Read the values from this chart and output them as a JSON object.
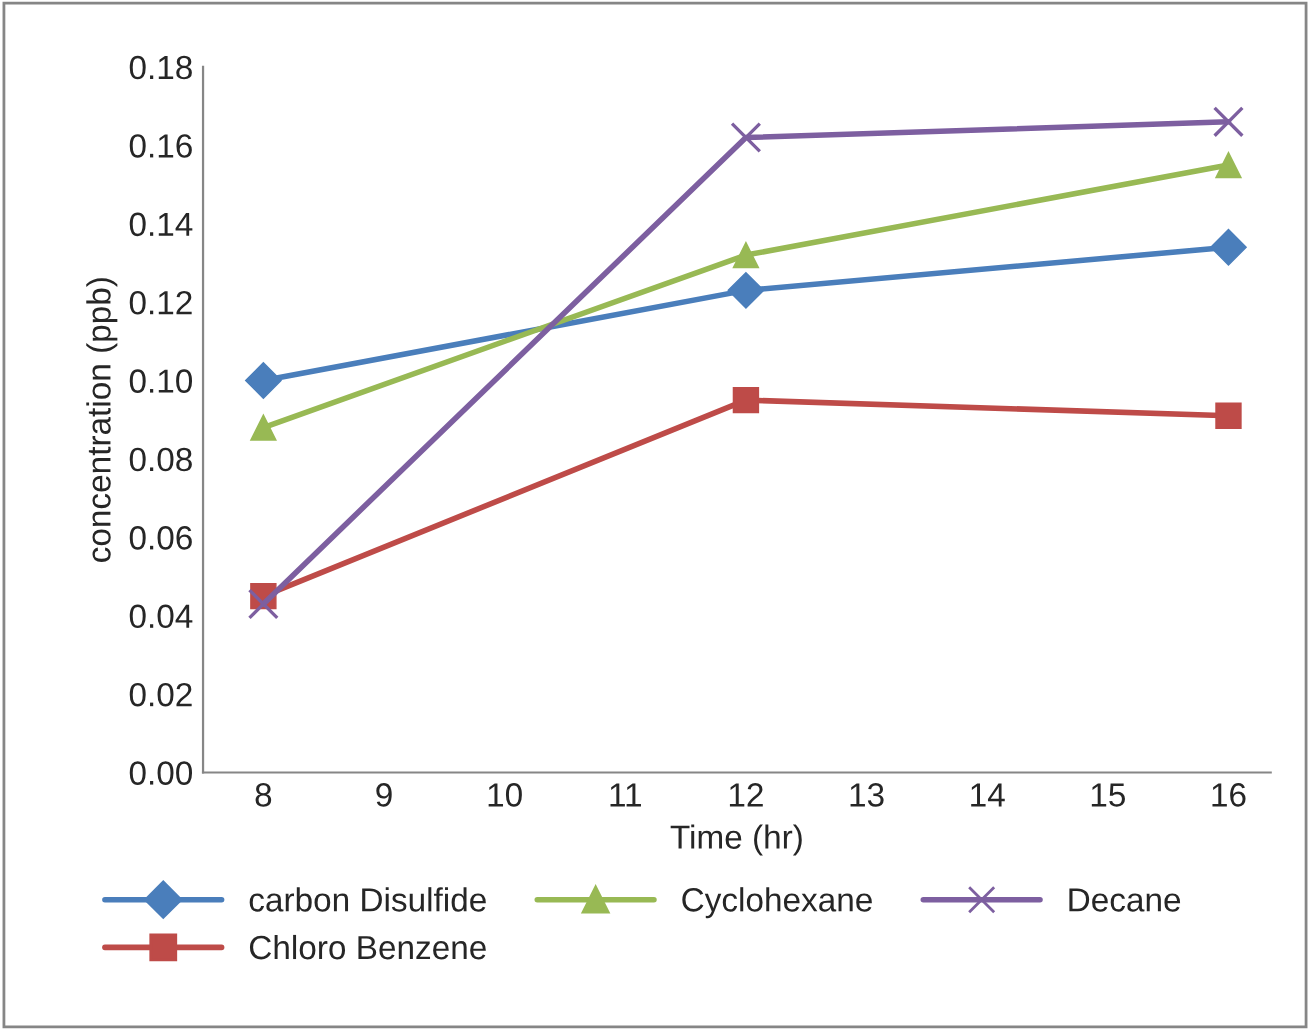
{
  "chart_data": {
    "type": "line",
    "xlabel": "Time (hr)",
    "ylabel": "concentration (ppb)",
    "x": [
      8,
      12,
      16
    ],
    "series": [
      {
        "name": "carbon Disulfide",
        "color": "#4a7ebb",
        "marker": "diamond",
        "values": [
          0.1,
          0.123,
          0.134
        ]
      },
      {
        "name": "Chloro Benzene",
        "color": "#be4b48",
        "marker": "square",
        "values": [
          0.045,
          0.095,
          0.091
        ]
      },
      {
        "name": "Cyclohexane",
        "color": "#98b954",
        "marker": "triangle",
        "values": [
          0.088,
          0.132,
          0.155
        ]
      },
      {
        "name": "Decane",
        "color": "#7d5fa0",
        "marker": "cross",
        "values": [
          0.043,
          0.162,
          0.166
        ]
      }
    ],
    "xlim": [
      7.5,
      16.35
    ],
    "xticks": [
      8,
      9,
      10,
      11,
      12,
      13,
      14,
      15,
      16
    ],
    "ylim": [
      0,
      0.18
    ],
    "yticks": [
      {
        "value": 0,
        "label": "0.00"
      },
      {
        "value": 0.02,
        "label": "0.02"
      },
      {
        "value": 0.04,
        "label": "0.04"
      },
      {
        "value": 0.06,
        "label": "0.06"
      },
      {
        "value": 0.08,
        "label": "0.08"
      },
      {
        "value": 0.1,
        "label": "0.10"
      },
      {
        "value": 0.12,
        "label": "0.12"
      },
      {
        "value": 0.14,
        "label": "0.14"
      },
      {
        "value": 0.16,
        "label": "0.16"
      },
      {
        "value": 0.18,
        "label": "0.18"
      }
    ],
    "grid": false,
    "legend": "bottom",
    "line_style": "solid"
  }
}
